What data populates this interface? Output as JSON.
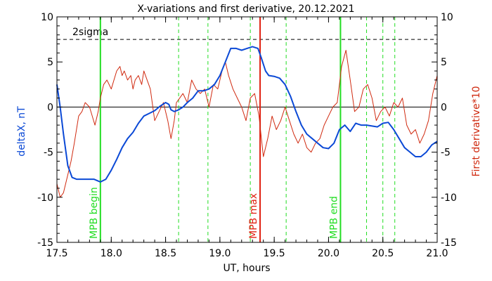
{
  "chart_data": {
    "type": "line",
    "title": "X-variations and first derivative, 20.12.2021",
    "xlabel": "UT, hours",
    "ylabel_left": "deltaX, nT",
    "ylabel_right": "First derivative*10",
    "xlim": [
      17.5,
      21.0
    ],
    "ylim": [
      -15,
      10
    ],
    "x_ticks": [
      "17.5",
      "18.0",
      "18.5",
      "19.0",
      "19.5",
      "20.0",
      "20.5",
      "21.0"
    ],
    "y_ticks_left": [
      "-15",
      "-10",
      "-5",
      "0",
      "5",
      "10"
    ],
    "y_ticks_right": [
      "-15",
      "-10",
      "-5",
      "0",
      "5",
      "10"
    ],
    "threshold": {
      "label": "2sigma",
      "value": 7.5
    },
    "series": [
      {
        "color": "#0b49d6",
        "x": [
          17.5,
          17.53,
          17.56,
          17.6,
          17.64,
          17.68,
          17.72,
          17.75,
          17.8,
          17.84,
          17.88,
          17.9,
          17.95,
          18.0,
          18.05,
          18.1,
          18.15,
          18.2,
          18.25,
          18.3,
          18.35,
          18.4,
          18.45,
          18.5,
          18.53,
          18.55,
          18.58,
          18.62,
          18.66,
          18.7,
          18.75,
          18.8,
          18.85,
          18.9,
          18.95,
          19.0,
          19.05,
          19.1,
          19.15,
          19.2,
          19.25,
          19.3,
          19.35,
          19.38,
          19.42,
          19.45,
          19.5,
          19.55,
          19.6,
          19.65,
          19.7,
          19.75,
          19.8,
          19.85,
          19.9,
          19.95,
          20.0,
          20.05,
          20.1,
          20.15,
          20.2,
          20.25,
          20.3,
          20.35,
          20.4,
          20.45,
          20.5,
          20.55,
          20.6,
          20.65,
          20.7,
          20.75,
          20.8,
          20.85,
          20.9,
          20.95,
          21.0
        ],
        "values": [
          2.5,
          0.0,
          -3.0,
          -6.5,
          -7.8,
          -8.0,
          -8.0,
          -8.0,
          -8.0,
          -8.0,
          -8.2,
          -8.3,
          -8.0,
          -7.0,
          -5.8,
          -4.5,
          -3.5,
          -2.8,
          -1.8,
          -1.0,
          -0.7,
          -0.4,
          0.1,
          0.5,
          0.3,
          -0.3,
          -0.5,
          -0.3,
          0.0,
          0.5,
          1.0,
          1.8,
          1.8,
          2.0,
          2.5,
          3.5,
          5.0,
          6.5,
          6.5,
          6.3,
          6.5,
          6.7,
          6.5,
          5.5,
          4.0,
          3.5,
          3.4,
          3.2,
          2.5,
          1.2,
          -0.5,
          -2.0,
          -3.0,
          -3.5,
          -4.0,
          -4.5,
          -4.6,
          -4.0,
          -2.5,
          -2.0,
          -2.7,
          -1.8,
          -2.0,
          -2.0,
          -2.1,
          -2.2,
          -1.8,
          -1.7,
          -2.5,
          -3.5,
          -4.5,
          -5.0,
          -5.5,
          -5.5,
          -5.0,
          -4.2,
          -3.8
        ]
      },
      {
        "color": "#d02a10",
        "x": [
          17.5,
          17.53,
          17.56,
          17.6,
          17.63,
          17.66,
          17.7,
          17.73,
          17.76,
          17.8,
          17.85,
          17.88,
          17.9,
          17.93,
          17.96,
          18.0,
          18.05,
          18.08,
          18.1,
          18.12,
          18.15,
          18.18,
          18.2,
          18.22,
          18.25,
          18.28,
          18.3,
          18.33,
          18.36,
          18.4,
          18.44,
          18.48,
          18.52,
          18.55,
          18.58,
          18.6,
          18.63,
          18.66,
          18.7,
          18.74,
          18.78,
          18.82,
          18.86,
          18.9,
          18.94,
          18.98,
          19.02,
          19.05,
          19.08,
          19.12,
          19.16,
          19.2,
          19.24,
          19.28,
          19.32,
          19.36,
          19.4,
          19.44,
          19.48,
          19.52,
          19.56,
          19.6,
          19.64,
          19.68,
          19.72,
          19.76,
          19.8,
          19.84,
          19.88,
          19.92,
          19.96,
          20.0,
          20.04,
          20.08,
          20.12,
          20.16,
          20.2,
          20.24,
          20.28,
          20.32,
          20.36,
          20.4,
          20.44,
          20.48,
          20.52,
          20.56,
          20.6,
          20.64,
          20.68,
          20.72,
          20.76,
          20.8,
          20.84,
          20.88,
          20.92,
          20.96,
          21.0
        ],
        "values": [
          -8.5,
          -10.0,
          -9.5,
          -7.5,
          -6.0,
          -4.0,
          -1.0,
          -0.5,
          0.5,
          0.0,
          -2.0,
          -0.5,
          1.0,
          2.5,
          3.0,
          2.0,
          4.0,
          4.5,
          3.5,
          4.0,
          3.0,
          3.5,
          2.0,
          3.0,
          3.5,
          2.5,
          4.0,
          3.0,
          2.0,
          -1.5,
          -0.5,
          0.5,
          -1.5,
          -3.5,
          -1.5,
          0.5,
          1.0,
          1.5,
          0.5,
          3.0,
          2.0,
          1.5,
          2.0,
          0.0,
          2.5,
          2.0,
          4.0,
          5.0,
          3.5,
          2.0,
          1.0,
          0.0,
          -1.5,
          1.0,
          1.5,
          -1.0,
          -5.5,
          -3.5,
          -1.0,
          -2.5,
          -1.5,
          0.0,
          -1.5,
          -3.0,
          -4.0,
          -3.0,
          -4.5,
          -5.0,
          -4.0,
          -3.5,
          -2.0,
          -1.0,
          0.0,
          0.5,
          4.5,
          6.3,
          3.0,
          -0.5,
          0.0,
          2.0,
          2.5,
          1.0,
          -1.5,
          -0.5,
          0.0,
          -1.0,
          0.5,
          0.0,
          1.0,
          -2.0,
          -3.0,
          -2.5,
          -4.0,
          -3.0,
          -1.5,
          1.5,
          3.5
        ]
      }
    ],
    "vlines": [
      {
        "x": 17.9,
        "color": "#22dd22",
        "style": "solid",
        "label": "MPB begin"
      },
      {
        "x": 18.62,
        "color": "#22dd22",
        "style": "dashed",
        "label": ""
      },
      {
        "x": 18.89,
        "color": "#22dd22",
        "style": "dashed",
        "label": ""
      },
      {
        "x": 19.28,
        "color": "#22dd22",
        "style": "dashed",
        "label": ""
      },
      {
        "x": 19.37,
        "color": "#e02010",
        "style": "solid",
        "label": "MPB max"
      },
      {
        "x": 19.61,
        "color": "#22dd22",
        "style": "dashed",
        "label": ""
      },
      {
        "x": 20.11,
        "color": "#22dd22",
        "style": "solid",
        "label": "MPB end"
      },
      {
        "x": 20.35,
        "color": "#22dd22",
        "style": "dashed",
        "label": ""
      },
      {
        "x": 20.5,
        "color": "#22dd22",
        "style": "dashed",
        "label": ""
      },
      {
        "x": 20.61,
        "color": "#22dd22",
        "style": "dashed",
        "label": ""
      }
    ],
    "zero_line": 0,
    "grid": false,
    "colors": {
      "left_axis_label": "#0b49d6",
      "right_axis_label": "#d02a10"
    }
  }
}
